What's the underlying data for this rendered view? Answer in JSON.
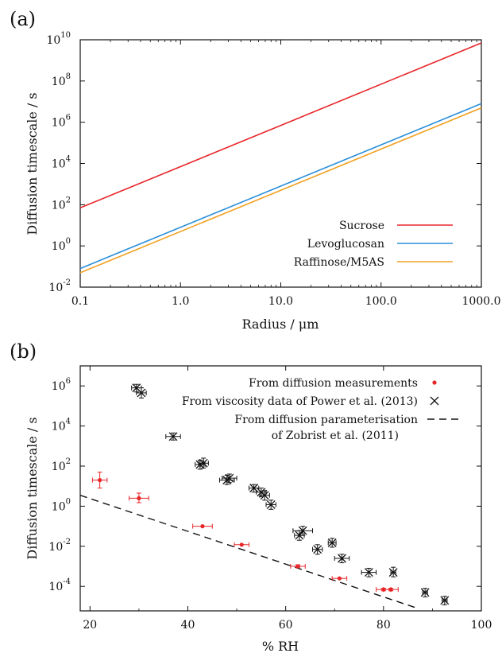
{
  "chart_data": [
    {
      "type": "line",
      "panel_label": "(a)",
      "xlabel": "Radius / μm",
      "ylabel": "Diffusion timescale / s",
      "xscale": "log",
      "yscale": "log",
      "xlim": [
        0.1,
        1000.0
      ],
      "ylim": [
        0.01,
        10000000000
      ],
      "x_ticks": [
        "0.1",
        "1.0",
        "10.0",
        "100.0",
        "1000.0"
      ],
      "y_ticks": [
        {
          "mantissa": "10",
          "exp": "-2"
        },
        {
          "mantissa": "10",
          "exp": "0"
        },
        {
          "mantissa": "10",
          "exp": "2"
        },
        {
          "mantissa": "10",
          "exp": "4"
        },
        {
          "mantissa": "10",
          "exp": "6"
        },
        {
          "mantissa": "10",
          "exp": "8"
        },
        {
          "mantissa": "10",
          "exp": "10"
        }
      ],
      "legend_position": "bottom-right",
      "series": [
        {
          "name": "Sucrose",
          "color": "#e8262a",
          "x": [
            0.1,
            1000.0
          ],
          "y": [
            70,
            7000000000
          ]
        },
        {
          "name": "Levoglucosan",
          "color": "#2b8fd8",
          "x": [
            0.1,
            1000.0
          ],
          "y": [
            0.08,
            8000000
          ]
        },
        {
          "name": "Raffinose/M5AS",
          "color": "#f0a020",
          "x": [
            0.1,
            1000.0
          ],
          "y": [
            0.05,
            5000000
          ]
        }
      ]
    },
    {
      "type": "scatter",
      "panel_label": "(b)",
      "xlabel": "% RH",
      "ylabel": "Diffusion timescale / s",
      "xscale": "linear",
      "yscale": "log",
      "xlim": [
        18,
        100
      ],
      "ylim": [
        6e-06,
        10000000
      ],
      "x_ticks": [
        "20",
        "40",
        "60",
        "80",
        "100"
      ],
      "y_ticks": [
        {
          "mantissa": "10",
          "exp": "-4"
        },
        {
          "mantissa": "10",
          "exp": "-2"
        },
        {
          "mantissa": "10",
          "exp": "0"
        },
        {
          "mantissa": "10",
          "exp": "2"
        },
        {
          "mantissa": "10",
          "exp": "4"
        },
        {
          "mantissa": "10",
          "exp": "6"
        }
      ],
      "legend_position": "top-right",
      "series": [
        {
          "name": "From diffusion measurements",
          "color": "#e8262a",
          "marker": "dot",
          "points": [
            {
              "x": 22,
              "y": 20,
              "xerr": 1.5,
              "ylo": 8,
              "yhi": 50
            },
            {
              "x": 30,
              "y": 2.5,
              "xerr": 2,
              "ylo": 1.5,
              "yhi": 4.5
            },
            {
              "x": 43,
              "y": 0.1,
              "xerr": 2,
              "ylo": 0.1,
              "yhi": 0.1
            },
            {
              "x": 51,
              "y": 0.012,
              "xerr": 1.5,
              "ylo": 0.012,
              "yhi": 0.012
            },
            {
              "x": 62.5,
              "y": 0.001,
              "xerr": 1.5,
              "ylo": 0.00085,
              "yhi": 0.0012
            },
            {
              "x": 71,
              "y": 0.00025,
              "xerr": 1.5,
              "ylo": 0.00025,
              "yhi": 0.00025
            },
            {
              "x": 80,
              "y": 7e-05,
              "xerr": 1.5,
              "ylo": 6e-05,
              "yhi": 8e-05
            },
            {
              "x": 81.5,
              "y": 7e-05,
              "xerr": 1.5,
              "ylo": 6e-05,
              "yhi": 8e-05
            }
          ]
        },
        {
          "name": "From viscosity data of Power et al. (2013)",
          "color": "#111111",
          "marker": "x",
          "points": [
            {
              "x": 29.5,
              "y": 800000,
              "xerr": 1,
              "ylo": 500000,
              "yhi": 1200000
            },
            {
              "x": 30.5,
              "y": 450000,
              "xerr": 1,
              "ylo": 250000,
              "yhi": 800000
            },
            {
              "x": 37,
              "y": 3000,
              "xerr": 1.5,
              "ylo": 2000,
              "yhi": 4500
            },
            {
              "x": 42.5,
              "y": 120,
              "xerr": 1,
              "ylo": 70,
              "yhi": 200
            },
            {
              "x": 43.2,
              "y": 140,
              "xerr": 1,
              "ylo": 80,
              "yhi": 250
            },
            {
              "x": 48,
              "y": 20,
              "xerr": 1.5,
              "ylo": 12,
              "yhi": 35
            },
            {
              "x": 48.5,
              "y": 25,
              "xerr": 1.5,
              "ylo": 15,
              "yhi": 40
            },
            {
              "x": 53.5,
              "y": 8,
              "xerr": 1,
              "ylo": 5,
              "yhi": 12
            },
            {
              "x": 55,
              "y": 5,
              "xerr": 1,
              "ylo": 3,
              "yhi": 8
            },
            {
              "x": 55.7,
              "y": 3.5,
              "xerr": 1,
              "ylo": 2,
              "yhi": 6
            },
            {
              "x": 57,
              "y": 1.2,
              "xerr": 1,
              "ylo": 0.7,
              "yhi": 2
            },
            {
              "x": 62.8,
              "y": 0.035,
              "xerr": 1,
              "ylo": 0.02,
              "yhi": 0.06
            },
            {
              "x": 63.5,
              "y": 0.06,
              "xerr": 2,
              "ylo": 0.035,
              "yhi": 0.1
            },
            {
              "x": 66.5,
              "y": 0.007,
              "xerr": 1,
              "ylo": 0.004,
              "yhi": 0.012
            },
            {
              "x": 69.5,
              "y": 0.015,
              "xerr": 0.8,
              "ylo": 0.009,
              "yhi": 0.025
            },
            {
              "x": 71.5,
              "y": 0.0025,
              "xerr": 1.5,
              "ylo": 0.0015,
              "yhi": 0.004
            },
            {
              "x": 77,
              "y": 0.0005,
              "xerr": 1.5,
              "ylo": 0.0003,
              "yhi": 0.0008
            },
            {
              "x": 82,
              "y": 0.0005,
              "xerr": 0.5,
              "ylo": 0.0003,
              "yhi": 0.0009
            },
            {
              "x": 88.5,
              "y": 5e-05,
              "xerr": 0.5,
              "ylo": 3e-05,
              "yhi": 8e-05
            },
            {
              "x": 92.5,
              "y": 2e-05,
              "xerr": 0.5,
              "ylo": 1.2e-05,
              "yhi": 3.2e-05
            }
          ]
        },
        {
          "name": "From diffusion parameterisation",
          "name_line2": "of Zobrist et al. (2011)",
          "color": "#111111",
          "marker": "dashed-line",
          "x": [
            18,
            87
          ],
          "y": [
            3.5,
            8e-06
          ]
        }
      ]
    }
  ]
}
